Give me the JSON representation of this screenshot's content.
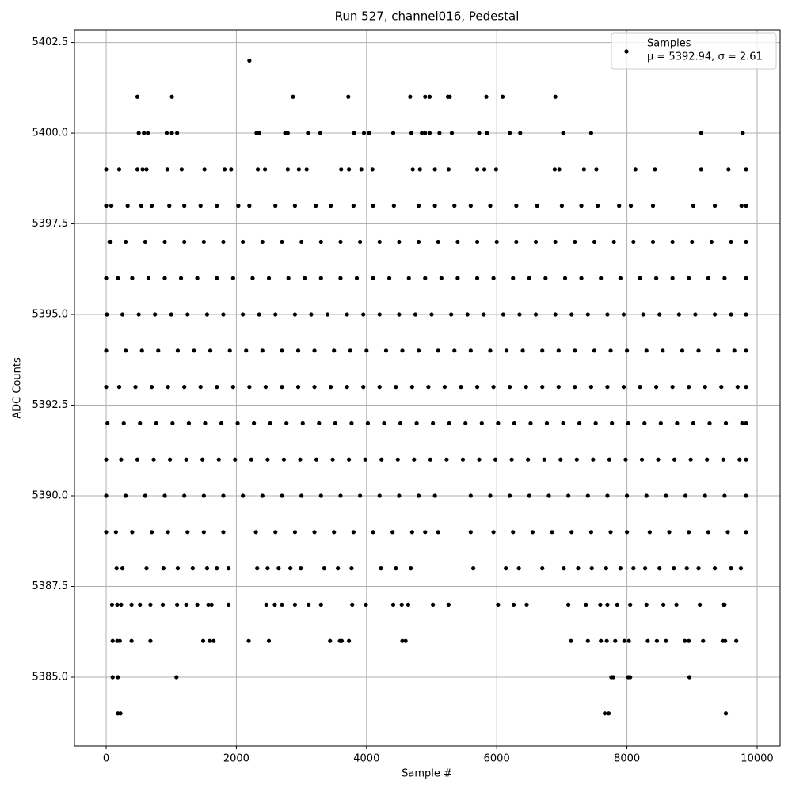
{
  "chart_data": {
    "type": "scatter",
    "title": "Run 527, channel016, Pedestal",
    "x_label": "Sample #",
    "y_label": "ADC Counts",
    "xlim": [
      -487,
      10353
    ],
    "ylim": [
      5383.1,
      5402.84
    ],
    "xticks": [
      0,
      2000,
      4000,
      6000,
      8000,
      10000
    ],
    "yticks": [
      {
        "value": 5385.0,
        "label": "5385.0"
      },
      5387.5,
      {
        "value": 5390.0,
        "label": "5390.0"
      },
      5392.5,
      {
        "value": 5395.0,
        "label": "5395.0"
      },
      5397.5,
      {
        "value": 5400.0,
        "label": "5400.0"
      },
      5402.5
    ],
    "grid": true,
    "legend_position": "upper right",
    "legend_note": "μ = 5392.94, σ = 2.61",
    "series": [
      {
        "name": "Samples",
        "color": "#000000",
        "x": [
          2200,
          480,
          1010,
          2870,
          3720,
          4670,
          4900,
          4970,
          5250,
          5280,
          5840,
          6090,
          6900,
          500,
          580,
          640,
          930,
          1010,
          1090,
          2310,
          2350,
          2750,
          2790,
          3100,
          3290,
          3810,
          3960,
          4040,
          4410,
          4690,
          4850,
          4900,
          4970,
          5120,
          5310,
          5730,
          5850,
          6200,
          6360,
          7020,
          7450,
          9140,
          9780,
          0,
          200,
          480,
          560,
          620,
          940,
          1160,
          1510,
          1820,
          1920,
          2330,
          2440,
          2790,
          2960,
          3080,
          3610,
          3730,
          3920,
          4090,
          4710,
          4820,
          5050,
          5260,
          5700,
          5810,
          5990,
          6890,
          6960,
          7340,
          7530,
          8130,
          8430,
          9140,
          9560,
          9830,
          0,
          80,
          330,
          540,
          700,
          970,
          1200,
          1450,
          1700,
          2030,
          2200,
          2600,
          2900,
          3220,
          3450,
          3800,
          4100,
          4420,
          4800,
          5050,
          5350,
          5600,
          5900,
          6300,
          6620,
          7000,
          7300,
          7550,
          7880,
          8060,
          8400,
          9020,
          9350,
          9760,
          9830,
          50,
          300,
          600,
          900,
          1200,
          1500,
          1800,
          2100,
          2400,
          2700,
          3000,
          3300,
          3600,
          3900,
          4200,
          4500,
          4800,
          5100,
          5400,
          5700,
          6000,
          6300,
          6600,
          6900,
          7200,
          7500,
          7800,
          8100,
          8400,
          8700,
          9000,
          9300,
          9600,
          9830,
          70,
          0,
          180,
          400,
          650,
          900,
          1150,
          1400,
          1700,
          1950,
          2250,
          2500,
          2800,
          3050,
          3300,
          3600,
          3850,
          4100,
          4350,
          4650,
          4900,
          5150,
          5400,
          5700,
          5950,
          6250,
          6500,
          6750,
          7050,
          7300,
          7600,
          7900,
          8200,
          8450,
          8700,
          8950,
          9250,
          9500,
          9830,
          10,
          250,
          500,
          750,
          1000,
          1250,
          1550,
          1800,
          2100,
          2350,
          2600,
          2900,
          3150,
          3400,
          3700,
          3950,
          4200,
          4500,
          4750,
          5000,
          5300,
          5550,
          5800,
          6100,
          6350,
          6600,
          6900,
          7150,
          7400,
          7700,
          7950,
          8250,
          8500,
          8800,
          9050,
          9350,
          9600,
          9830,
          0,
          300,
          550,
          800,
          1100,
          1350,
          1600,
          1900,
          2150,
          2400,
          2700,
          2950,
          3200,
          3500,
          3750,
          4000,
          4300,
          4550,
          4800,
          5100,
          5350,
          5600,
          5900,
          6150,
          6400,
          6700,
          6950,
          7200,
          7500,
          7750,
          8000,
          8300,
          8550,
          8850,
          9100,
          9400,
          9650,
          9830,
          0,
          200,
          450,
          700,
          950,
          1200,
          1450,
          1700,
          1950,
          2200,
          2450,
          2700,
          2950,
          3200,
          3450,
          3700,
          3950,
          4200,
          4450,
          4700,
          4950,
          5200,
          5450,
          5700,
          5950,
          6200,
          6450,
          6700,
          6950,
          7200,
          7450,
          7700,
          7950,
          8200,
          8450,
          8700,
          8950,
          9200,
          9450,
          9700,
          9830,
          20,
          270,
          520,
          770,
          1020,
          1270,
          1520,
          1770,
          2020,
          2270,
          2520,
          2770,
          3020,
          3270,
          3520,
          3770,
          4020,
          4270,
          4520,
          4770,
          5020,
          5270,
          5520,
          5770,
          6020,
          6270,
          6520,
          6770,
          7020,
          7270,
          7520,
          7770,
          8020,
          8270,
          8520,
          8770,
          9020,
          9270,
          9520,
          9770,
          9830,
          0,
          230,
          480,
          730,
          980,
          1230,
          1480,
          1730,
          1980,
          2230,
          2480,
          2730,
          2980,
          3230,
          3480,
          3730,
          3980,
          4230,
          4480,
          4730,
          4980,
          5230,
          5480,
          5730,
          5980,
          6230,
          6480,
          6730,
          6980,
          7230,
          7480,
          7730,
          7980,
          8230,
          8480,
          8730,
          8980,
          9230,
          9480,
          9730,
          9830,
          0,
          300,
          600,
          900,
          1200,
          1500,
          1800,
          2100,
          2400,
          2700,
          3000,
          3300,
          3600,
          3900,
          4200,
          4500,
          4800,
          5050,
          5600,
          5900,
          6200,
          6500,
          6800,
          7100,
          7400,
          7700,
          8000,
          8300,
          8600,
          8900,
          9200,
          9500,
          9830,
          0,
          150,
          400,
          700,
          950,
          1250,
          1500,
          1800,
          2300,
          2600,
          2900,
          3200,
          3500,
          3800,
          4100,
          4400,
          4700,
          4900,
          5100,
          5600,
          5950,
          6250,
          6550,
          6850,
          7150,
          7450,
          7750,
          8000,
          8350,
          8650,
          8950,
          9250,
          9550,
          9830,
          160,
          250,
          620,
          880,
          1100,
          1330,
          1550,
          1700,
          1880,
          2320,
          2480,
          2650,
          2830,
          2990,
          3350,
          3560,
          3770,
          4220,
          4450,
          4680,
          5640,
          6140,
          6340,
          6700,
          7030,
          7250,
          7460,
          7680,
          7900,
          8100,
          8280,
          8500,
          8720,
          8920,
          9100,
          9350,
          9600,
          9750,
          90,
          170,
          230,
          390,
          520,
          680,
          870,
          1090,
          1230,
          1400,
          1570,
          1620,
          1880,
          2460,
          2590,
          2700,
          2900,
          3110,
          3300,
          3780,
          3990,
          4410,
          4540,
          4640,
          5020,
          5260,
          6020,
          6260,
          6460,
          7100,
          7370,
          7590,
          7700,
          7850,
          8050,
          8300,
          8560,
          8760,
          9120,
          9480,
          9500,
          100,
          170,
          210,
          390,
          680,
          1490,
          1590,
          1650,
          2190,
          2500,
          3440,
          3590,
          3620,
          3730,
          4550,
          4600,
          7140,
          7400,
          7600,
          7690,
          7820,
          7960,
          8030,
          8320,
          8460,
          8600,
          8890,
          8950,
          9170,
          9470,
          9510,
          9680,
          100,
          180,
          1080,
          7760,
          7790,
          8020,
          8050,
          8960,
          180,
          220,
          7660,
          7720,
          9520
        ],
        "values": [
          5402,
          5401,
          5401,
          5401,
          5401,
          5401,
          5401,
          5401,
          5401,
          5401,
          5401,
          5401,
          5401,
          5400,
          5400,
          5400,
          5400,
          5400,
          5400,
          5400,
          5400,
          5400,
          5400,
          5400,
          5400,
          5400,
          5400,
          5400,
          5400,
          5400,
          5400,
          5400,
          5400,
          5400,
          5400,
          5400,
          5400,
          5400,
          5400,
          5400,
          5400,
          5400,
          5400,
          5399,
          5399,
          5399,
          5399,
          5399,
          5399,
          5399,
          5399,
          5399,
          5399,
          5399,
          5399,
          5399,
          5399,
          5399,
          5399,
          5399,
          5399,
          5399,
          5399,
          5399,
          5399,
          5399,
          5399,
          5399,
          5399,
          5399,
          5399,
          5399,
          5399,
          5399,
          5399,
          5399,
          5399,
          5399,
          5398,
          5398,
          5398,
          5398,
          5398,
          5398,
          5398,
          5398,
          5398,
          5398,
          5398,
          5398,
          5398,
          5398,
          5398,
          5398,
          5398,
          5398,
          5398,
          5398,
          5398,
          5398,
          5398,
          5398,
          5398,
          5398,
          5398,
          5398,
          5398,
          5398,
          5398,
          5398,
          5398,
          5398,
          5398,
          5397,
          5397,
          5397,
          5397,
          5397,
          5397,
          5397,
          5397,
          5397,
          5397,
          5397,
          5397,
          5397,
          5397,
          5397,
          5397,
          5397,
          5397,
          5397,
          5397,
          5397,
          5397,
          5397,
          5397,
          5397,
          5397,
          5397,
          5397,
          5397,
          5397,
          5397,
          5397,
          5397,
          5397,
          5397,
          5396,
          5396,
          5396,
          5396,
          5396,
          5396,
          5396,
          5396,
          5396,
          5396,
          5396,
          5396,
          5396,
          5396,
          5396,
          5396,
          5396,
          5396,
          5396,
          5396,
          5396,
          5396,
          5396,
          5396,
          5396,
          5396,
          5396,
          5396,
          5396,
          5396,
          5396,
          5396,
          5396,
          5396,
          5396,
          5396,
          5396,
          5396,
          5395,
          5395,
          5395,
          5395,
          5395,
          5395,
          5395,
          5395,
          5395,
          5395,
          5395,
          5395,
          5395,
          5395,
          5395,
          5395,
          5395,
          5395,
          5395,
          5395,
          5395,
          5395,
          5395,
          5395,
          5395,
          5395,
          5395,
          5395,
          5395,
          5395,
          5395,
          5395,
          5395,
          5395,
          5395,
          5395,
          5395,
          5395,
          5394,
          5394,
          5394,
          5394,
          5394,
          5394,
          5394,
          5394,
          5394,
          5394,
          5394,
          5394,
          5394,
          5394,
          5394,
          5394,
          5394,
          5394,
          5394,
          5394,
          5394,
          5394,
          5394,
          5394,
          5394,
          5394,
          5394,
          5394,
          5394,
          5394,
          5394,
          5394,
          5394,
          5394,
          5394,
          5394,
          5394,
          5394,
          5393,
          5393,
          5393,
          5393,
          5393,
          5393,
          5393,
          5393,
          5393,
          5393,
          5393,
          5393,
          5393,
          5393,
          5393,
          5393,
          5393,
          5393,
          5393,
          5393,
          5393,
          5393,
          5393,
          5393,
          5393,
          5393,
          5393,
          5393,
          5393,
          5393,
          5393,
          5393,
          5393,
          5393,
          5393,
          5393,
          5393,
          5393,
          5393,
          5393,
          5393,
          5392,
          5392,
          5392,
          5392,
          5392,
          5392,
          5392,
          5392,
          5392,
          5392,
          5392,
          5392,
          5392,
          5392,
          5392,
          5392,
          5392,
          5392,
          5392,
          5392,
          5392,
          5392,
          5392,
          5392,
          5392,
          5392,
          5392,
          5392,
          5392,
          5392,
          5392,
          5392,
          5392,
          5392,
          5392,
          5392,
          5392,
          5392,
          5392,
          5392,
          5392,
          5391,
          5391,
          5391,
          5391,
          5391,
          5391,
          5391,
          5391,
          5391,
          5391,
          5391,
          5391,
          5391,
          5391,
          5391,
          5391,
          5391,
          5391,
          5391,
          5391,
          5391,
          5391,
          5391,
          5391,
          5391,
          5391,
          5391,
          5391,
          5391,
          5391,
          5391,
          5391,
          5391,
          5391,
          5391,
          5391,
          5391,
          5391,
          5391,
          5391,
          5391,
          5390,
          5390,
          5390,
          5390,
          5390,
          5390,
          5390,
          5390,
          5390,
          5390,
          5390,
          5390,
          5390,
          5390,
          5390,
          5390,
          5390,
          5390,
          5390,
          5390,
          5390,
          5390,
          5390,
          5390,
          5390,
          5390,
          5390,
          5390,
          5390,
          5390,
          5390,
          5390,
          5390,
          5389,
          5389,
          5389,
          5389,
          5389,
          5389,
          5389,
          5389,
          5389,
          5389,
          5389,
          5389,
          5389,
          5389,
          5389,
          5389,
          5389,
          5389,
          5389,
          5389,
          5389,
          5389,
          5389,
          5389,
          5389,
          5389,
          5389,
          5389,
          5389,
          5389,
          5389,
          5389,
          5389,
          5389,
          5388,
          5388,
          5388,
          5388,
          5388,
          5388,
          5388,
          5388,
          5388,
          5388,
          5388,
          5388,
          5388,
          5388,
          5388,
          5388,
          5388,
          5388,
          5388,
          5388,
          5388,
          5388,
          5388,
          5388,
          5388,
          5388,
          5388,
          5388,
          5388,
          5388,
          5388,
          5388,
          5388,
          5388,
          5388,
          5388,
          5388,
          5388,
          5387,
          5387,
          5387,
          5387,
          5387,
          5387,
          5387,
          5387,
          5387,
          5387,
          5387,
          5387,
          5387,
          5387,
          5387,
          5387,
          5387,
          5387,
          5387,
          5387,
          5387,
          5387,
          5387,
          5387,
          5387,
          5387,
          5387,
          5387,
          5387,
          5387,
          5387,
          5387,
          5387,
          5387,
          5387,
          5387,
          5387,
          5387,
          5387,
          5387,
          5387,
          5386,
          5386,
          5386,
          5386,
          5386,
          5386,
          5386,
          5386,
          5386,
          5386,
          5386,
          5386,
          5386,
          5386,
          5386,
          5386,
          5386,
          5386,
          5386,
          5386,
          5386,
          5386,
          5386,
          5386,
          5386,
          5386,
          5386,
          5386,
          5386,
          5386,
          5386,
          5386,
          5385,
          5385,
          5385,
          5385,
          5385,
          5385,
          5385,
          5385,
          5384,
          5384,
          5384,
          5384,
          5384
        ]
      }
    ]
  }
}
